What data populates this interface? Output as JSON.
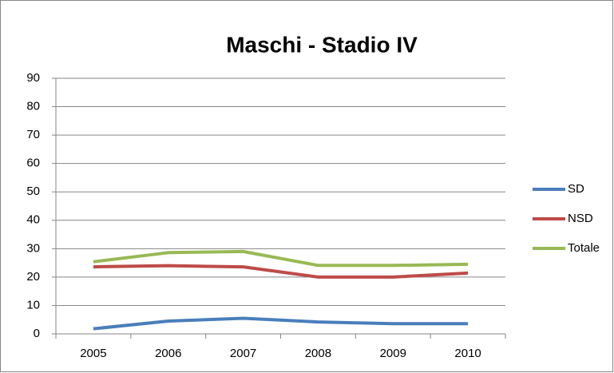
{
  "chart_data": {
    "type": "line",
    "title": "Maschi - Stadio IV",
    "categories": [
      "2005",
      "2006",
      "2007",
      "2008",
      "2009",
      "2010"
    ],
    "series": [
      {
        "name": "SD",
        "color": "#4a7ebb",
        "values": [
          1.8,
          4.5,
          5.5,
          4.2,
          3.6,
          3.6
        ]
      },
      {
        "name": "NSD",
        "color": "#be4b48",
        "values": [
          23.6,
          24.0,
          23.6,
          20.0,
          20.0,
          21.4
        ]
      },
      {
        "name": "Totale",
        "color": "#98b954",
        "values": [
          25.4,
          28.6,
          29.0,
          24.1,
          24.1,
          24.5
        ]
      }
    ],
    "ylim": [
      0,
      90
    ],
    "yticks": [
      0,
      10,
      20,
      30,
      40,
      50,
      60,
      70,
      80,
      90
    ],
    "grid": true,
    "legend": "right"
  }
}
